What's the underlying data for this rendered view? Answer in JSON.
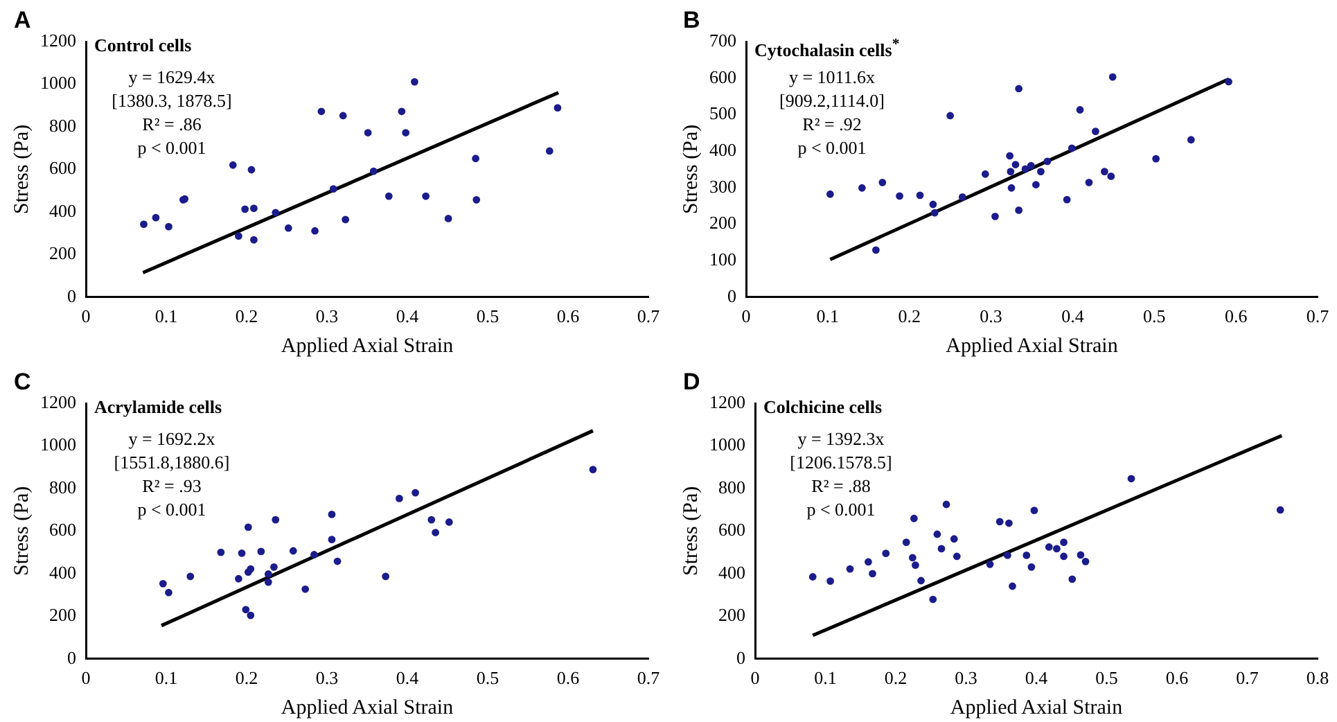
{
  "chart_data": [
    {
      "type": "scatter",
      "title": "A",
      "subtitle": "Control cells",
      "xlabel": "Applied Axial Strain",
      "ylabel": "Stress (Pa)",
      "annotations": [
        "y = 1629.4x",
        "[1380.3, 1878.5]",
        "R² = .86",
        "p < 0.001"
      ],
      "xlim": [
        0,
        0.7
      ],
      "ylim": [
        0,
        1200
      ],
      "xticks": [
        0,
        0.1,
        0.2,
        0.3,
        0.4,
        0.5,
        0.6,
        0.7
      ],
      "yticks": [
        0,
        200,
        400,
        600,
        800,
        1000,
        1200
      ],
      "grid": false,
      "legend": false,
      "series": [
        {
          "type": "scatter",
          "marker": "circle",
          "color": "#1c1c8c",
          "x": [
            0.072,
            0.087,
            0.103,
            0.121,
            0.123,
            0.183,
            0.19,
            0.198,
            0.206,
            0.209,
            0.209,
            0.236,
            0.252,
            0.285,
            0.293,
            0.308,
            0.32,
            0.323,
            0.351,
            0.358,
            0.377,
            0.393,
            0.398,
            0.409,
            0.423,
            0.451,
            0.485,
            0.486,
            0.577,
            0.587
          ],
          "values": [
            342,
            373,
            331,
            457,
            461,
            620,
            287,
            413,
            598,
            417,
            269,
            397,
            324,
            311,
            872,
            508,
            852,
            364,
            772,
            591,
            474,
            872,
            772,
            1011,
            474,
            369,
            651,
            457,
            686,
            889
          ]
        },
        {
          "type": "line",
          "marker": "none",
          "color": "#000000",
          "x": [
            0.071,
            0.588
          ],
          "values": [
            115,
            960
          ]
        }
      ]
    },
    {
      "type": "scatter",
      "title": "B",
      "subtitle": "Cytochalasin cells$^{*}$",
      "xlabel": "Applied Axial Strain",
      "ylabel": "Stress (Pa)",
      "annotations": [
        "y = 1011.6x",
        "[909.2,1114.0]",
        "R² = .92",
        "p < 0.001"
      ],
      "xlim": [
        0,
        0.7
      ],
      "ylim": [
        0,
        700
      ],
      "xticks": [
        0,
        0.1,
        0.2,
        0.3,
        0.4,
        0.5,
        0.6,
        0.7
      ],
      "yticks": [
        0,
        100,
        200,
        300,
        400,
        500,
        600,
        700
      ],
      "grid": false,
      "legend": false,
      "series": [
        {
          "type": "scatter",
          "marker": "circle",
          "color": "#1c1c8c",
          "x": [
            0.103,
            0.142,
            0.159,
            0.167,
            0.188,
            0.213,
            0.229,
            0.231,
            0.25,
            0.265,
            0.293,
            0.305,
            0.323,
            0.324,
            0.325,
            0.33,
            0.334,
            0.334,
            0.342,
            0.349,
            0.355,
            0.361,
            0.369,
            0.393,
            0.399,
            0.409,
            0.42,
            0.428,
            0.439,
            0.447,
            0.449,
            0.502,
            0.545,
            0.591
          ],
          "values": [
            282,
            299,
            129,
            314,
            277,
            279,
            254,
            231,
            497,
            274,
            337,
            221,
            387,
            344,
            299,
            363,
            571,
            238,
            351,
            360,
            308,
            344,
            372,
            267,
            408,
            513,
            314,
            454,
            344,
            331,
            603,
            379,
            431,
            590
          ]
        },
        {
          "type": "line",
          "marker": "none",
          "color": "#000000",
          "x": [
            0.103,
            0.591
          ],
          "values": [
            103,
            597
          ]
        }
      ]
    },
    {
      "type": "scatter",
      "title": "C",
      "subtitle": "Acrylamide cells",
      "xlabel": "Applied Axial Strain",
      "ylabel": "Stress (Pa)",
      "annotations": [
        "y = 1692.2x",
        "[1551.8,1880.6]",
        "R² = .93",
        "p < 0.001"
      ],
      "xlim": [
        0,
        0.7
      ],
      "ylim": [
        0,
        1200
      ],
      "xticks": [
        0,
        0.1,
        0.2,
        0.3,
        0.4,
        0.5,
        0.6,
        0.7
      ],
      "yticks": [
        0,
        200,
        400,
        600,
        800,
        1000,
        1200
      ],
      "grid": false,
      "legend": false,
      "series": [
        {
          "type": "scatter",
          "marker": "circle",
          "color": "#1c1c8c",
          "x": [
            0.096,
            0.103,
            0.13,
            0.168,
            0.19,
            0.194,
            0.199,
            0.202,
            0.202,
            0.205,
            0.205,
            0.218,
            0.227,
            0.227,
            0.234,
            0.236,
            0.258,
            0.273,
            0.284,
            0.306,
            0.306,
            0.313,
            0.373,
            0.39,
            0.41,
            0.43,
            0.435,
            0.452,
            0.631
          ],
          "values": [
            353,
            311,
            387,
            500,
            376,
            496,
            231,
            618,
            407,
            422,
            204,
            504,
            398,
            360,
            431,
            653,
            507,
            327,
            489,
            678,
            560,
            458,
            387,
            753,
            780,
            653,
            593,
            642,
            889
          ]
        },
        {
          "type": "line",
          "marker": "none",
          "color": "#000000",
          "x": [
            0.094,
            0.631
          ],
          "values": [
            156,
            1071
          ]
        }
      ]
    },
    {
      "type": "scatter",
      "title": "D",
      "subtitle": "Colchicine cells",
      "xlabel": "Applied Axial Strain",
      "ylabel": "Stress (Pa)",
      "annotations": [
        "y = 1392.3x",
        "[1206.1578.5]",
        "R² = .88",
        "p < 0.001"
      ],
      "xlim": [
        0,
        0.8
      ],
      "ylim": [
        0,
        1200
      ],
      "xticks": [
        0,
        0.1,
        0.2,
        0.3,
        0.4,
        0.5,
        0.6,
        0.7,
        0.8
      ],
      "yticks": [
        0,
        200,
        400,
        600,
        800,
        1000,
        1200
      ],
      "grid": false,
      "legend": false,
      "series": [
        {
          "type": "scatter",
          "marker": "circle",
          "color": "#1c1c8c",
          "x": [
            0.082,
            0.107,
            0.135,
            0.161,
            0.167,
            0.186,
            0.215,
            0.224,
            0.226,
            0.228,
            0.236,
            0.253,
            0.259,
            0.265,
            0.272,
            0.283,
            0.287,
            0.334,
            0.348,
            0.359,
            0.361,
            0.366,
            0.386,
            0.393,
            0.397,
            0.418,
            0.429,
            0.439,
            0.439,
            0.451,
            0.463,
            0.47,
            0.535,
            0.747
          ],
          "values": [
            385,
            365,
            422,
            455,
            400,
            495,
            547,
            475,
            659,
            440,
            367,
            279,
            585,
            517,
            725,
            563,
            481,
            444,
            644,
            486,
            637,
            341,
            486,
            431,
            697,
            525,
            517,
            547,
            481,
            374,
            488,
            457,
            846,
            699
          ]
        },
        {
          "type": "line",
          "marker": "none",
          "color": "#000000",
          "x": [
            0.082,
            0.749
          ],
          "values": [
            110,
            1048
          ]
        }
      ]
    }
  ]
}
